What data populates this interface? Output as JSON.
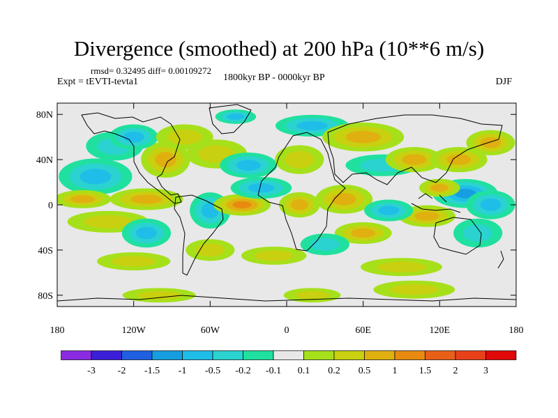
{
  "title": "Divergence (smoothed) at 200 hPa (10**6 m/s)",
  "stats": "rmsd= 0.32495 diff= 0.00109272",
  "experiment": "Expt = tEVTI-tevta1",
  "period": "1800kyr BP - 0000kyr BP",
  "season": "DJF",
  "map": {
    "lon_range": [
      -180,
      180
    ],
    "lat_range": [
      -90,
      90
    ],
    "lat_ticks": [
      {
        "value": 80,
        "label": "80N"
      },
      {
        "value": 40,
        "label": "40N"
      },
      {
        "value": 0,
        "label": "0"
      },
      {
        "value": -40,
        "label": "40S"
      },
      {
        "value": -80,
        "label": "80S"
      }
    ],
    "lon_ticks": [
      {
        "value": -180,
        "label": "180"
      },
      {
        "value": -120,
        "label": "120W"
      },
      {
        "value": -60,
        "label": "60W"
      },
      {
        "value": 0,
        "label": "0"
      },
      {
        "value": 60,
        "label": "60E"
      },
      {
        "value": 120,
        "label": "120E"
      },
      {
        "value": 180,
        "label": "180"
      }
    ]
  },
  "colorbar": {
    "colors": [
      "#8a2be2",
      "#3c1fd8",
      "#1f5fe0",
      "#169ee0",
      "#1fbee8",
      "#2ad3d0",
      "#20e0a0",
      "#e8e8e8",
      "#a6e01a",
      "#c8d010",
      "#e0b010",
      "#e88a10",
      "#e86018",
      "#e84018",
      "#e00808"
    ],
    "labels": [
      "-3",
      "-2",
      "-1.5",
      "-1",
      "-0.5",
      "-0.2",
      "-0.1",
      "0.1",
      "0.2",
      "0.5",
      "1",
      "1.5",
      "2",
      "3"
    ]
  },
  "chart_data": {
    "type": "heatmap",
    "title": "Divergence (smoothed) at 200 hPa (10**6 m/s)",
    "units": "10**6 m/s",
    "levels": [
      -3,
      -2,
      -1.5,
      -1,
      -0.5,
      -0.2,
      -0.1,
      0.1,
      0.2,
      0.5,
      1,
      1.5,
      2,
      3
    ],
    "features": [
      {
        "lon": -150,
        "lat": 25,
        "value": -0.6,
        "sx": 18,
        "sy": 10
      },
      {
        "lon": -135,
        "lat": 52,
        "value": -0.4,
        "sx": 14,
        "sy": 8
      },
      {
        "lon": -160,
        "lat": 5,
        "value": 0.7,
        "sx": 14,
        "sy": 5
      },
      {
        "lon": -110,
        "lat": 5,
        "value": 0.5,
        "sx": 18,
        "sy": 6
      },
      {
        "lon": -140,
        "lat": -15,
        "value": 0.4,
        "sx": 20,
        "sy": 6
      },
      {
        "lon": -110,
        "lat": -25,
        "value": -0.5,
        "sx": 12,
        "sy": 8
      },
      {
        "lon": -95,
        "lat": 40,
        "value": 0.6,
        "sx": 12,
        "sy": 10
      },
      {
        "lon": -120,
        "lat": 60,
        "value": -0.6,
        "sx": 12,
        "sy": 7
      },
      {
        "lon": -80,
        "lat": 60,
        "value": 0.4,
        "sx": 14,
        "sy": 7
      },
      {
        "lon": -55,
        "lat": 45,
        "value": 0.3,
        "sx": 15,
        "sy": 8
      },
      {
        "lon": -60,
        "lat": -5,
        "value": -0.6,
        "sx": 10,
        "sy": 10
      },
      {
        "lon": -35,
        "lat": 0,
        "value": 1.1,
        "sx": 14,
        "sy": 6
      },
      {
        "lon": -20,
        "lat": 15,
        "value": -0.5,
        "sx": 15,
        "sy": 6
      },
      {
        "lon": -30,
        "lat": 35,
        "value": -0.5,
        "sx": 14,
        "sy": 7
      },
      {
        "lon": 10,
        "lat": 40,
        "value": 0.4,
        "sx": 12,
        "sy": 8
      },
      {
        "lon": 20,
        "lat": 70,
        "value": -0.5,
        "sx": 18,
        "sy": 6
      },
      {
        "lon": -40,
        "lat": 78,
        "value": -0.5,
        "sx": 10,
        "sy": 4
      },
      {
        "lon": 60,
        "lat": 60,
        "value": 0.5,
        "sx": 20,
        "sy": 8
      },
      {
        "lon": 10,
        "lat": 0,
        "value": 0.8,
        "sx": 10,
        "sy": 7
      },
      {
        "lon": 45,
        "lat": 5,
        "value": 0.6,
        "sx": 14,
        "sy": 8
      },
      {
        "lon": 75,
        "lat": 35,
        "value": -0.4,
        "sx": 18,
        "sy": 6
      },
      {
        "lon": 100,
        "lat": 40,
        "value": 0.6,
        "sx": 14,
        "sy": 7
      },
      {
        "lon": 135,
        "lat": 40,
        "value": 0.9,
        "sx": 14,
        "sy": 7
      },
      {
        "lon": 160,
        "lat": 55,
        "value": 0.5,
        "sx": 12,
        "sy": 7
      },
      {
        "lon": 140,
        "lat": 10,
        "value": -1.2,
        "sx": 16,
        "sy": 8
      },
      {
        "lon": 160,
        "lat": 0,
        "value": -0.8,
        "sx": 12,
        "sy": 8
      },
      {
        "lon": 110,
        "lat": -10,
        "value": 0.8,
        "sx": 14,
        "sy": 6
      },
      {
        "lon": 80,
        "lat": -5,
        "value": -0.5,
        "sx": 12,
        "sy": 6
      },
      {
        "lon": 120,
        "lat": 15,
        "value": 0.5,
        "sx": 10,
        "sy": 5
      },
      {
        "lon": 60,
        "lat": -25,
        "value": 0.5,
        "sx": 14,
        "sy": 6
      },
      {
        "lon": 150,
        "lat": -25,
        "value": -0.4,
        "sx": 12,
        "sy": 8
      },
      {
        "lon": -60,
        "lat": -40,
        "value": 0.4,
        "sx": 12,
        "sy": 6
      },
      {
        "lon": 30,
        "lat": -35,
        "value": -0.4,
        "sx": 12,
        "sy": 6
      },
      {
        "lon": -10,
        "lat": -45,
        "value": 0.35,
        "sx": 16,
        "sy": 5
      },
      {
        "lon": -120,
        "lat": -50,
        "value": 0.3,
        "sx": 18,
        "sy": 5
      },
      {
        "lon": 90,
        "lat": -55,
        "value": 0.3,
        "sx": 20,
        "sy": 5
      },
      {
        "lon": 100,
        "lat": -75,
        "value": 0.3,
        "sx": 20,
        "sy": 5
      },
      {
        "lon": -100,
        "lat": -80,
        "value": 0.3,
        "sx": 18,
        "sy": 4
      },
      {
        "lon": 20,
        "lat": -80,
        "value": 0.3,
        "sx": 14,
        "sy": 4
      }
    ]
  }
}
